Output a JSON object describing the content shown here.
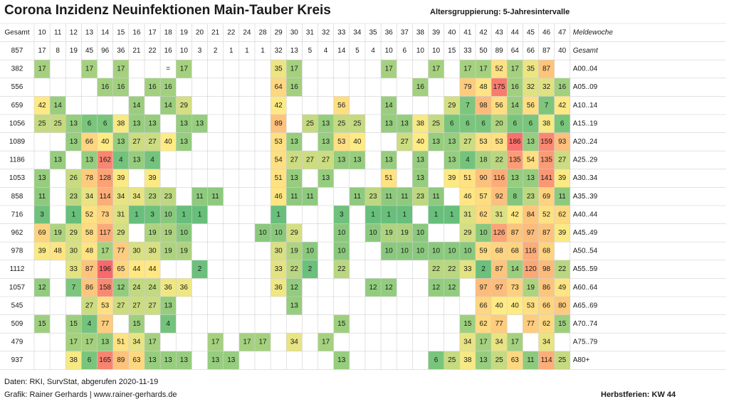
{
  "chart_data": {
    "type": "heatmap",
    "title": "Corona Inzidenz Neuinfektionen Main-Tauber Kreis",
    "subtitle": "Altersgruppierung: 5-Jahresintervalle",
    "total_label": "Gesamt",
    "x_axis_label": "Meldewoche",
    "x": [
      "10",
      "11",
      "12",
      "13",
      "14",
      "15",
      "16",
      "17",
      "18",
      "19",
      "20",
      "21",
      "22",
      "24",
      "28",
      "29",
      "30",
      "31",
      "32",
      "33",
      "34",
      "35",
      "36",
      "37",
      "38",
      "39",
      "40",
      "41",
      "42",
      "43",
      "44",
      "45",
      "46",
      "47"
    ],
    "total_row": {
      "label": "Gesamt",
      "total": "857",
      "values": [
        "17",
        "8",
        "19",
        "45",
        "96",
        "36",
        "21",
        "22",
        "16",
        "10",
        "3",
        "2",
        "1",
        "1",
        "1",
        "32",
        "13",
        "5",
        "4",
        "14",
        "5",
        "4",
        "10",
        "6",
        "10",
        "10",
        "15",
        "33",
        "50",
        "89",
        "64",
        "66",
        "87",
        "40"
      ]
    },
    "rows": [
      {
        "label": "A00..04",
        "total": "382",
        "values": [
          17,
          null,
          null,
          17,
          null,
          17,
          null,
          null,
          "=",
          17,
          null,
          null,
          null,
          null,
          null,
          35,
          17,
          null,
          null,
          null,
          null,
          null,
          17,
          null,
          null,
          17,
          null,
          17,
          17,
          52,
          17,
          35,
          87,
          null
        ]
      },
      {
        "label": "A05..09",
        "total": "556",
        "values": [
          null,
          null,
          null,
          null,
          16,
          16,
          null,
          16,
          16,
          null,
          null,
          null,
          null,
          null,
          null,
          64,
          16,
          null,
          null,
          null,
          null,
          null,
          null,
          null,
          16,
          null,
          null,
          79,
          48,
          175,
          16,
          32,
          32,
          16
        ]
      },
      {
        "label": "A10..14",
        "total": "659",
        "values": [
          42,
          14,
          null,
          null,
          null,
          null,
          14,
          null,
          14,
          29,
          null,
          null,
          null,
          null,
          null,
          42,
          null,
          null,
          null,
          56,
          null,
          null,
          14,
          null,
          null,
          null,
          29,
          7,
          98,
          56,
          14,
          56,
          7,
          42
        ]
      },
      {
        "label": "A15..19",
        "total": "1056",
        "values": [
          25,
          25,
          13,
          6,
          6,
          38,
          13,
          13,
          null,
          13,
          13,
          null,
          null,
          null,
          null,
          89,
          null,
          25,
          13,
          25,
          25,
          null,
          13,
          13,
          38,
          25,
          6,
          6,
          6,
          20,
          6,
          6,
          38,
          6
        ]
      },
      {
        "label": "A20..24",
        "total": "1089",
        "values": [
          null,
          null,
          13,
          66,
          40,
          13,
          27,
          27,
          40,
          13,
          null,
          null,
          null,
          null,
          null,
          53,
          13,
          null,
          13,
          53,
          40,
          null,
          null,
          27,
          40,
          13,
          13,
          27,
          53,
          53,
          186,
          13,
          159,
          93
        ]
      },
      {
        "label": "A25..29",
        "total": "1186",
        "values": [
          null,
          13,
          null,
          13,
          162,
          4,
          13,
          4,
          null,
          null,
          null,
          null,
          null,
          null,
          null,
          54,
          27,
          27,
          27,
          13,
          13,
          null,
          13,
          null,
          13,
          null,
          13,
          4,
          18,
          22,
          135,
          54,
          135,
          27
        ]
      },
      {
        "label": "A30..34",
        "total": "1053",
        "values": [
          13,
          null,
          26,
          78,
          128,
          39,
          null,
          39,
          null,
          null,
          null,
          null,
          null,
          null,
          null,
          51,
          13,
          null,
          13,
          null,
          null,
          null,
          51,
          null,
          13,
          null,
          39,
          51,
          90,
          116,
          13,
          13,
          141,
          39
        ]
      },
      {
        "label": "A35..39",
        "total": "858",
        "values": [
          11,
          null,
          23,
          34,
          114,
          34,
          34,
          23,
          23,
          null,
          11,
          11,
          null,
          null,
          null,
          46,
          11,
          11,
          null,
          null,
          11,
          23,
          11,
          11,
          23,
          11,
          null,
          46,
          57,
          92,
          8,
          23,
          69,
          11
        ]
      },
      {
        "label": "A40..44",
        "total": "716",
        "values": [
          3,
          null,
          1,
          52,
          73,
          31,
          1,
          3,
          10,
          1,
          1,
          null,
          null,
          null,
          null,
          1,
          null,
          null,
          null,
          3,
          null,
          1,
          1,
          1,
          null,
          1,
          1,
          31,
          62,
          31,
          42,
          84,
          52,
          62
        ]
      },
      {
        "label": "A45..49",
        "total": "962",
        "values": [
          69,
          19,
          29,
          58,
          117,
          29,
          null,
          19,
          19,
          10,
          null,
          null,
          null,
          null,
          10,
          10,
          29,
          null,
          null,
          10,
          null,
          10,
          19,
          19,
          10,
          null,
          null,
          29,
          10,
          126,
          87,
          97,
          87,
          39
        ]
      },
      {
        "label": "A50..54",
        "total": "978",
        "values": [
          39,
          48,
          30,
          48,
          17,
          77,
          30,
          30,
          19,
          19,
          null,
          null,
          null,
          null,
          null,
          30,
          19,
          10,
          null,
          10,
          null,
          null,
          10,
          10,
          10,
          10,
          10,
          10,
          59,
          68,
          68,
          116,
          68,
          null
        ]
      },
      {
        "label": "A55..59",
        "total": "1112",
        "values": [
          null,
          null,
          33,
          87,
          196,
          65,
          44,
          44,
          null,
          null,
          2,
          null,
          null,
          null,
          null,
          33,
          22,
          2,
          null,
          22,
          null,
          null,
          null,
          null,
          null,
          22,
          22,
          33,
          2,
          87,
          14,
          120,
          98,
          22
        ]
      },
      {
        "label": "A60..64",
        "total": "1057",
        "values": [
          12,
          null,
          7,
          86,
          158,
          12,
          24,
          24,
          36,
          36,
          null,
          null,
          null,
          null,
          null,
          36,
          12,
          null,
          null,
          null,
          null,
          12,
          12,
          null,
          null,
          12,
          12,
          null,
          97,
          97,
          73,
          19,
          86,
          49
        ]
      },
      {
        "label": "A65..69",
        "total": "545",
        "values": [
          null,
          null,
          null,
          27,
          53,
          27,
          27,
          27,
          13,
          null,
          null,
          null,
          null,
          null,
          null,
          null,
          13,
          null,
          null,
          null,
          null,
          null,
          null,
          null,
          null,
          null,
          null,
          null,
          66,
          40,
          40,
          53,
          66,
          80
        ]
      },
      {
        "label": "A70..74",
        "total": "509",
        "values": [
          15,
          null,
          15,
          4,
          77,
          null,
          15,
          null,
          4,
          null,
          null,
          null,
          null,
          null,
          null,
          null,
          null,
          null,
          null,
          15,
          null,
          null,
          null,
          null,
          null,
          null,
          null,
          15,
          62,
          77,
          null,
          77,
          62,
          15
        ]
      },
      {
        "label": "A75..79",
        "total": "479",
        "values": [
          null,
          null,
          17,
          17,
          13,
          51,
          34,
          17,
          null,
          null,
          null,
          17,
          null,
          17,
          17,
          null,
          34,
          null,
          17,
          null,
          null,
          null,
          null,
          null,
          null,
          null,
          null,
          34,
          17,
          34,
          17,
          null,
          34,
          null
        ]
      },
      {
        "label": "A80+",
        "total": "937",
        "values": [
          null,
          null,
          38,
          6,
          165,
          89,
          63,
          13,
          13,
          13,
          null,
          13,
          13,
          null,
          null,
          null,
          null,
          null,
          null,
          13,
          null,
          null,
          null,
          null,
          null,
          6,
          25,
          38,
          13,
          25,
          63,
          11,
          114,
          25
        ]
      }
    ],
    "colors": {
      "low": "#63be7b",
      "mid": "#ffeb84",
      "high": "#f8696b",
      "line": "#d0d0d0"
    }
  },
  "footer": {
    "source": "Daten: RKI, SurvStat, abgerufen 2020-11-19",
    "credit": "Grafik: Rainer Gerhards | www.rainer-gerhards.de",
    "holiday": "Herbstferien: KW 44"
  }
}
